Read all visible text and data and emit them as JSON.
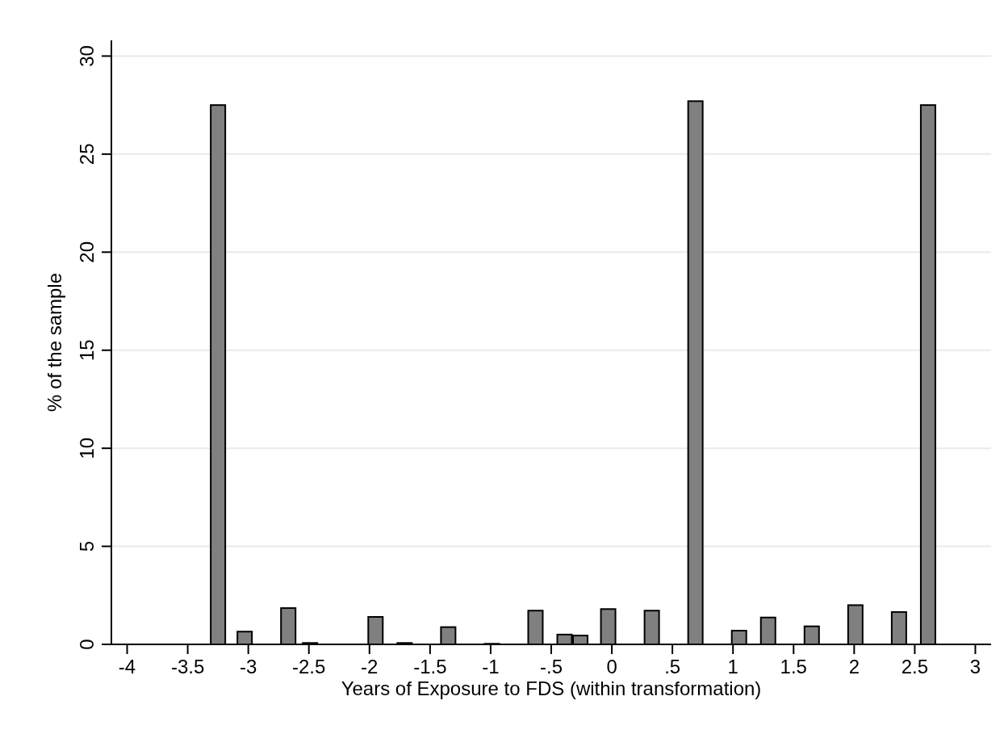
{
  "chart_data": {
    "type": "bar",
    "xlabel": "Years of Exposure to FDS (within transformation)",
    "ylabel": "% of the sample",
    "x": [
      -3.25,
      -3.03,
      -2.67,
      -2.49,
      -1.95,
      -1.71,
      -1.35,
      -0.99,
      -0.63,
      -0.39,
      -0.26,
      -0.03,
      0.33,
      0.69,
      1.05,
      1.29,
      1.65,
      2.01,
      2.37,
      2.61
    ],
    "values": [
      27.5,
      0.65,
      1.85,
      0.07,
      1.4,
      0.07,
      0.88,
      0.03,
      1.72,
      0.5,
      0.45,
      1.8,
      1.72,
      27.7,
      0.7,
      1.37,
      0.92,
      2.0,
      1.65,
      27.5
    ],
    "color": "#808080",
    "xlim": [
      -4.13,
      3.13
    ],
    "ylim": [
      0,
      30.8
    ],
    "xticks": [
      -4,
      {
        "value": -3.5,
        "label": "-3.5"
      },
      -3,
      {
        "value": -2.5,
        "label": "-2.5"
      },
      -2,
      {
        "value": -1.5,
        "label": "-1.5"
      },
      -1,
      {
        "value": -0.5,
        "label": "-.5"
      },
      0,
      {
        "value": 0.5,
        "label": ".5"
      },
      1,
      {
        "value": 1.5,
        "label": "1.5"
      },
      2,
      {
        "value": 2.5,
        "label": "2.5"
      },
      3
    ],
    "yticks": [
      0,
      5,
      10,
      15,
      20,
      25,
      30
    ],
    "grid": "y"
  }
}
